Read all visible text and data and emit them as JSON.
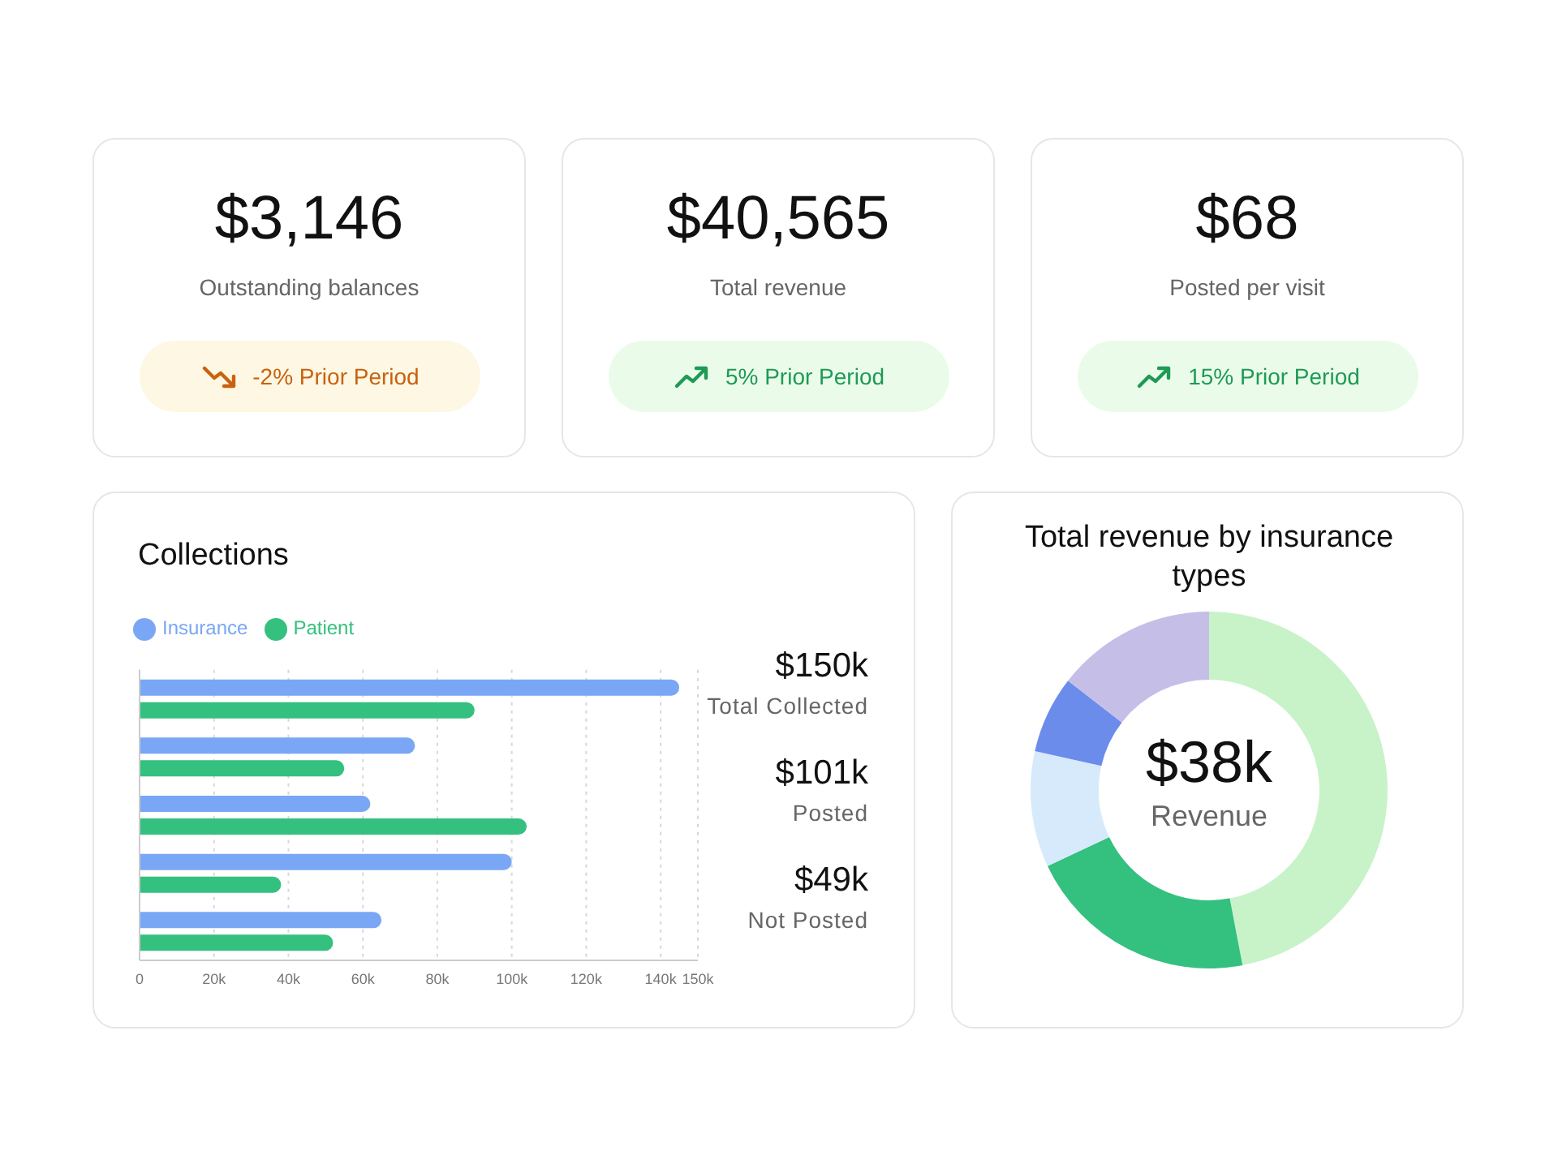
{
  "chart_data": [
    {
      "type": "other",
      "title": "$3,146",
      "subtitle": "Outstanding balances",
      "values": [
        -2
      ],
      "value_labels": [
        "-2% Prior Period"
      ]
    },
    {
      "type": "other",
      "title": "$40,565",
      "subtitle": "Total revenue",
      "values": [
        5
      ],
      "value_labels": [
        "5% Prior Period"
      ]
    },
    {
      "type": "other",
      "title": "$68",
      "subtitle": "Posted per visit",
      "values": [
        15
      ],
      "value_labels": [
        "15% Prior Period"
      ]
    },
    {
      "type": "bar",
      "title": "Collections",
      "orientation": "horizontal",
      "categories": [
        null,
        null,
        null,
        null,
        null
      ],
      "series": [
        {
          "name": "Insurance",
          "color": "#7aa7f5",
          "values": [
            145000,
            74000,
            62000,
            100000,
            65000
          ]
        },
        {
          "name": "Patient",
          "color": "#34c07e",
          "values": [
            90000,
            55000,
            104000,
            38000,
            52000
          ]
        }
      ],
      "xlim": [
        0,
        150000
      ],
      "xticks": [
        0,
        {
          "value": 20000,
          "label": "20k"
        },
        {
          "value": 40000,
          "label": "40k"
        },
        {
          "value": 60000,
          "label": "60k"
        },
        {
          "value": 80000,
          "label": "80k"
        },
        {
          "value": 100000,
          "label": "100k"
        },
        {
          "value": 120000,
          "label": "120k"
        },
        {
          "value": 140000,
          "label": "140k"
        },
        {
          "value": 150000,
          "label": "150k"
        }
      ],
      "grid": "x",
      "legend": "top left",
      "annotations": [
        "$150k",
        "Total Collected",
        "$101k",
        "Posted",
        "$49k",
        "Not Posted"
      ]
    },
    {
      "type": "donut",
      "title": "Total revenue by insurance types",
      "categories": [
        null,
        null,
        null,
        null,
        null
      ],
      "values": [
        47,
        21,
        10.5,
        7,
        14.5
      ],
      "colors": [
        "#c8f2c8",
        "#34c07e",
        "#d6eafc",
        "#6b8ceb",
        "#c5bfe8"
      ],
      "annotations": [
        "$38k",
        "Revenue"
      ]
    }
  ]
}
